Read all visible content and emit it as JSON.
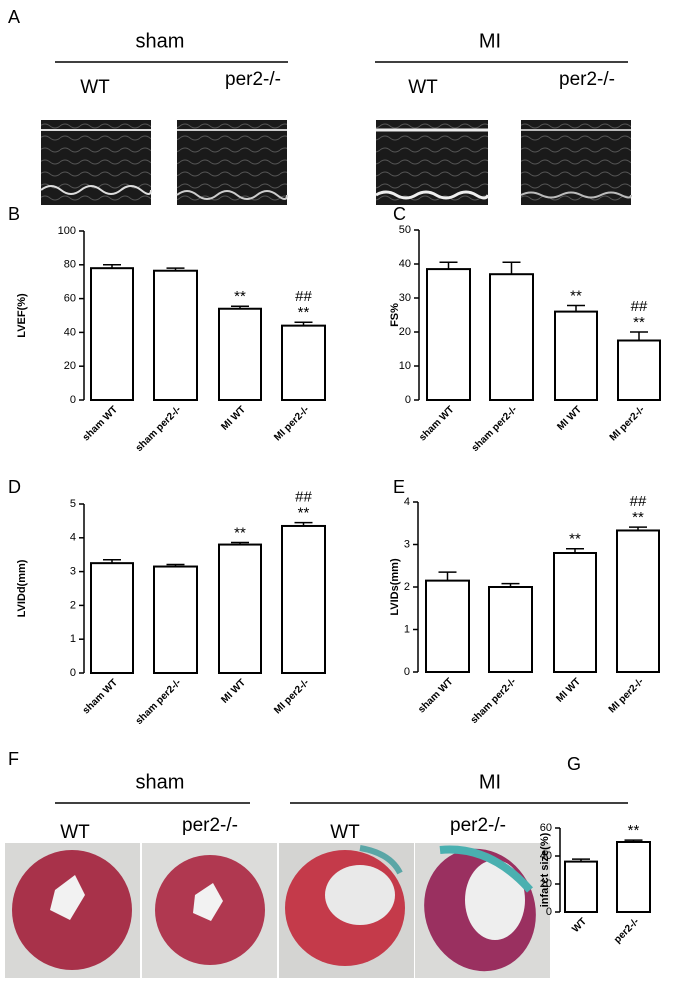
{
  "panel_a": {
    "letter": "A",
    "groups": [
      {
        "label": "sham",
        "sub": [
          "WT",
          "per2-/-"
        ]
      },
      {
        "label": "MI",
        "sub": [
          "WT",
          "per2-/-"
        ]
      }
    ]
  },
  "panel_f": {
    "letter": "F",
    "groups": [
      {
        "label": "sham",
        "sub": [
          "WT",
          "per2-/-"
        ]
      },
      {
        "label": "MI",
        "sub": [
          "WT",
          "per2-/-"
        ]
      }
    ]
  },
  "chart_data": [
    {
      "type": "bar",
      "letter": "B",
      "ylabel": "LVEF(%)",
      "categories": [
        "sham WT",
        "sham per2-/-",
        "MI WT",
        "MI per2-/-"
      ],
      "values": [
        78,
        76.5,
        54,
        44
      ],
      "errors": [
        2,
        1.5,
        1.5,
        2
      ],
      "sig_star": [
        null,
        null,
        "**",
        "**"
      ],
      "sig_hash": [
        null,
        null,
        null,
        "##"
      ],
      "ylim": [
        0,
        100
      ],
      "yticks": [
        0,
        20,
        40,
        60,
        80,
        100
      ],
      "color": "#ffffff"
    },
    {
      "type": "bar",
      "letter": "C",
      "ylabel": "FS%",
      "categories": [
        "sham WT",
        "sham per2-/-",
        "MI WT",
        "MI per2-/-"
      ],
      "values": [
        38.5,
        37,
        26,
        17.5
      ],
      "errors": [
        2,
        3.5,
        1.8,
        2.5
      ],
      "sig_star": [
        null,
        null,
        "**",
        "**"
      ],
      "sig_hash": [
        null,
        null,
        null,
        "##"
      ],
      "ylim": [
        0,
        50
      ],
      "yticks": [
        0,
        10,
        20,
        30,
        40,
        50
      ],
      "color": "#ffffff"
    },
    {
      "type": "bar",
      "letter": "D",
      "ylabel": "LVIDd(mm)",
      "categories": [
        "sham WT",
        "sham per2-/-",
        "MI WT",
        "MI per2-/-"
      ],
      "values": [
        3.25,
        3.15,
        3.8,
        4.35
      ],
      "errors": [
        0.1,
        0.06,
        0.06,
        0.1
      ],
      "sig_star": [
        null,
        null,
        "**",
        "**"
      ],
      "sig_hash": [
        null,
        null,
        null,
        "##"
      ],
      "ylim": [
        0,
        5
      ],
      "yticks": [
        0,
        1,
        2,
        3,
        4,
        5
      ],
      "color": "#ffffff"
    },
    {
      "type": "bar",
      "letter": "E",
      "ylabel": "LVIDs(mm)",
      "categories": [
        "sham WT",
        "sham per2-/-",
        "MI WT",
        "MI per2-/-"
      ],
      "values": [
        2.15,
        2.0,
        2.8,
        3.33
      ],
      "errors": [
        0.2,
        0.08,
        0.1,
        0.08
      ],
      "sig_star": [
        null,
        null,
        "**",
        "**"
      ],
      "sig_hash": [
        null,
        null,
        null,
        "##"
      ],
      "ylim": [
        0,
        4
      ],
      "yticks": [
        0,
        1,
        2,
        3,
        4
      ],
      "color": "#ffffff"
    },
    {
      "type": "bar",
      "letter": "G",
      "ylabel": "infarct size(%)",
      "categories": [
        "WT",
        "per2-/-"
      ],
      "values": [
        36,
        50
      ],
      "errors": [
        1.8,
        1.3
      ],
      "sig_star": [
        null,
        "**"
      ],
      "sig_hash": [
        null,
        null
      ],
      "ylim": [
        0,
        60
      ],
      "yticks": [
        0,
        20,
        40,
        60
      ],
      "color": "#ffffff"
    }
  ]
}
